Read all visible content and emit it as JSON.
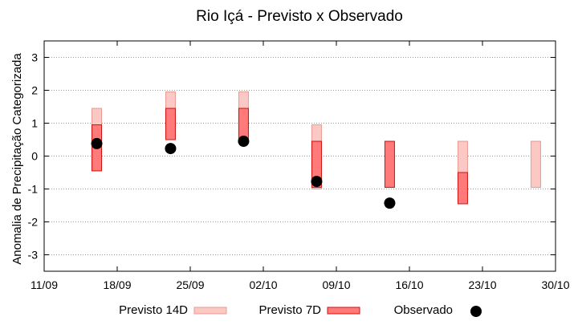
{
  "chart_data": {
    "type": "range-bar",
    "title": "Rio Içá - Previsto x Observado",
    "ylabel": "Anomalia de Precipitação Categorizada",
    "xlabel": "",
    "ylim": [
      -3.5,
      3.5
    ],
    "yticks": [
      -3,
      -2,
      -1,
      0,
      1,
      2,
      3
    ],
    "xticks": [
      "11/09",
      "18/09",
      "25/09",
      "02/10",
      "09/10",
      "16/10",
      "23/10",
      "30/10"
    ],
    "grid": "horizontal-dotted",
    "legend_position": "bottom",
    "colors": {
      "p14_fill": "#fbc8c3",
      "p14_stroke": "#e89a92",
      "p7_fill": "#ff7a78",
      "p7_stroke": "#cc1111",
      "obs": "#000000"
    },
    "series": [
      {
        "name": "Previsto 14D",
        "kind": "range",
        "points": [
          {
            "x_week": 0.72,
            "low": -0.45,
            "high": 1.45
          },
          {
            "x_week": 1.73,
            "low": 0.5,
            "high": 1.95
          },
          {
            "x_week": 2.73,
            "low": 0.5,
            "high": 1.95
          },
          {
            "x_week": 3.73,
            "low": -1.0,
            "high": 0.95
          },
          {
            "x_week": 5.73,
            "low": -0.5,
            "high": 0.45
          },
          {
            "x_week": 6.73,
            "low": -0.95,
            "high": 0.45
          }
        ]
      },
      {
        "name": "Previsto 7D",
        "kind": "range",
        "points": [
          {
            "x_week": 0.72,
            "low": -0.45,
            "high": 0.95
          },
          {
            "x_week": 1.73,
            "low": 0.5,
            "high": 1.45
          },
          {
            "x_week": 2.73,
            "low": 0.5,
            "high": 1.45
          },
          {
            "x_week": 3.73,
            "low": -0.95,
            "high": 0.45
          },
          {
            "x_week": 4.73,
            "low": -0.95,
            "high": 0.45
          },
          {
            "x_week": 5.73,
            "low": -1.45,
            "high": -0.5
          }
        ]
      },
      {
        "name": "Observado",
        "kind": "point",
        "points": [
          {
            "x_week": 0.72,
            "y": 0.38
          },
          {
            "x_week": 1.73,
            "y": 0.23
          },
          {
            "x_week": 2.73,
            "y": 0.45
          },
          {
            "x_week": 3.73,
            "y": -0.77
          },
          {
            "x_week": 4.73,
            "y": -1.43
          }
        ]
      }
    ]
  }
}
